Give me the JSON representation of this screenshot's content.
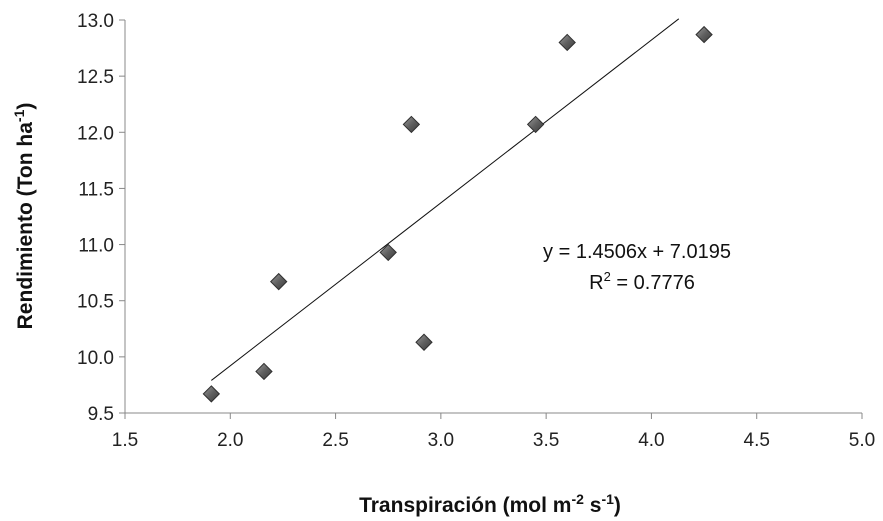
{
  "chart_data": {
    "type": "scatter",
    "title": "",
    "xlabel": "Transpiración (mol m",
    "xlabel_sup1": "-2",
    "xlabel_mid": " s",
    "xlabel_sup2": "-1",
    "xlabel_end": ")",
    "ylabel": "Rendimiento (Ton ha",
    "ylabel_sup": "-1",
    "ylabel_end": ")",
    "xlim": [
      1.5,
      5.0
    ],
    "ylim": [
      9.5,
      13.0
    ],
    "x_ticks": [
      "1.5",
      "2.0",
      "2.5",
      "3.0",
      "3.5",
      "4.0",
      "4.5",
      "5.0"
    ],
    "y_ticks": [
      "9.5",
      "10.0",
      "10.5",
      "11.0",
      "11.5",
      "12.0",
      "12.5",
      "13.0"
    ],
    "grid": false,
    "marker_color": "#606060",
    "points": [
      {
        "x": 1.91,
        "y": 9.67
      },
      {
        "x": 2.16,
        "y": 9.87
      },
      {
        "x": 2.23,
        "y": 10.67
      },
      {
        "x": 2.75,
        "y": 10.93
      },
      {
        "x": 2.86,
        "y": 12.07
      },
      {
        "x": 2.92,
        "y": 10.13
      },
      {
        "x": 3.45,
        "y": 12.07
      },
      {
        "x": 3.6,
        "y": 12.8
      },
      {
        "x": 4.25,
        "y": 12.87
      }
    ],
    "trendline": {
      "slope": 1.4506,
      "intercept": 7.0195,
      "x_range": [
        1.91,
        4.13
      ],
      "equation": "y = 1.4506x + 7.0195",
      "r2_label": "R",
      "r2_sup": "2",
      "r2_value": " = 0.7776"
    }
  }
}
